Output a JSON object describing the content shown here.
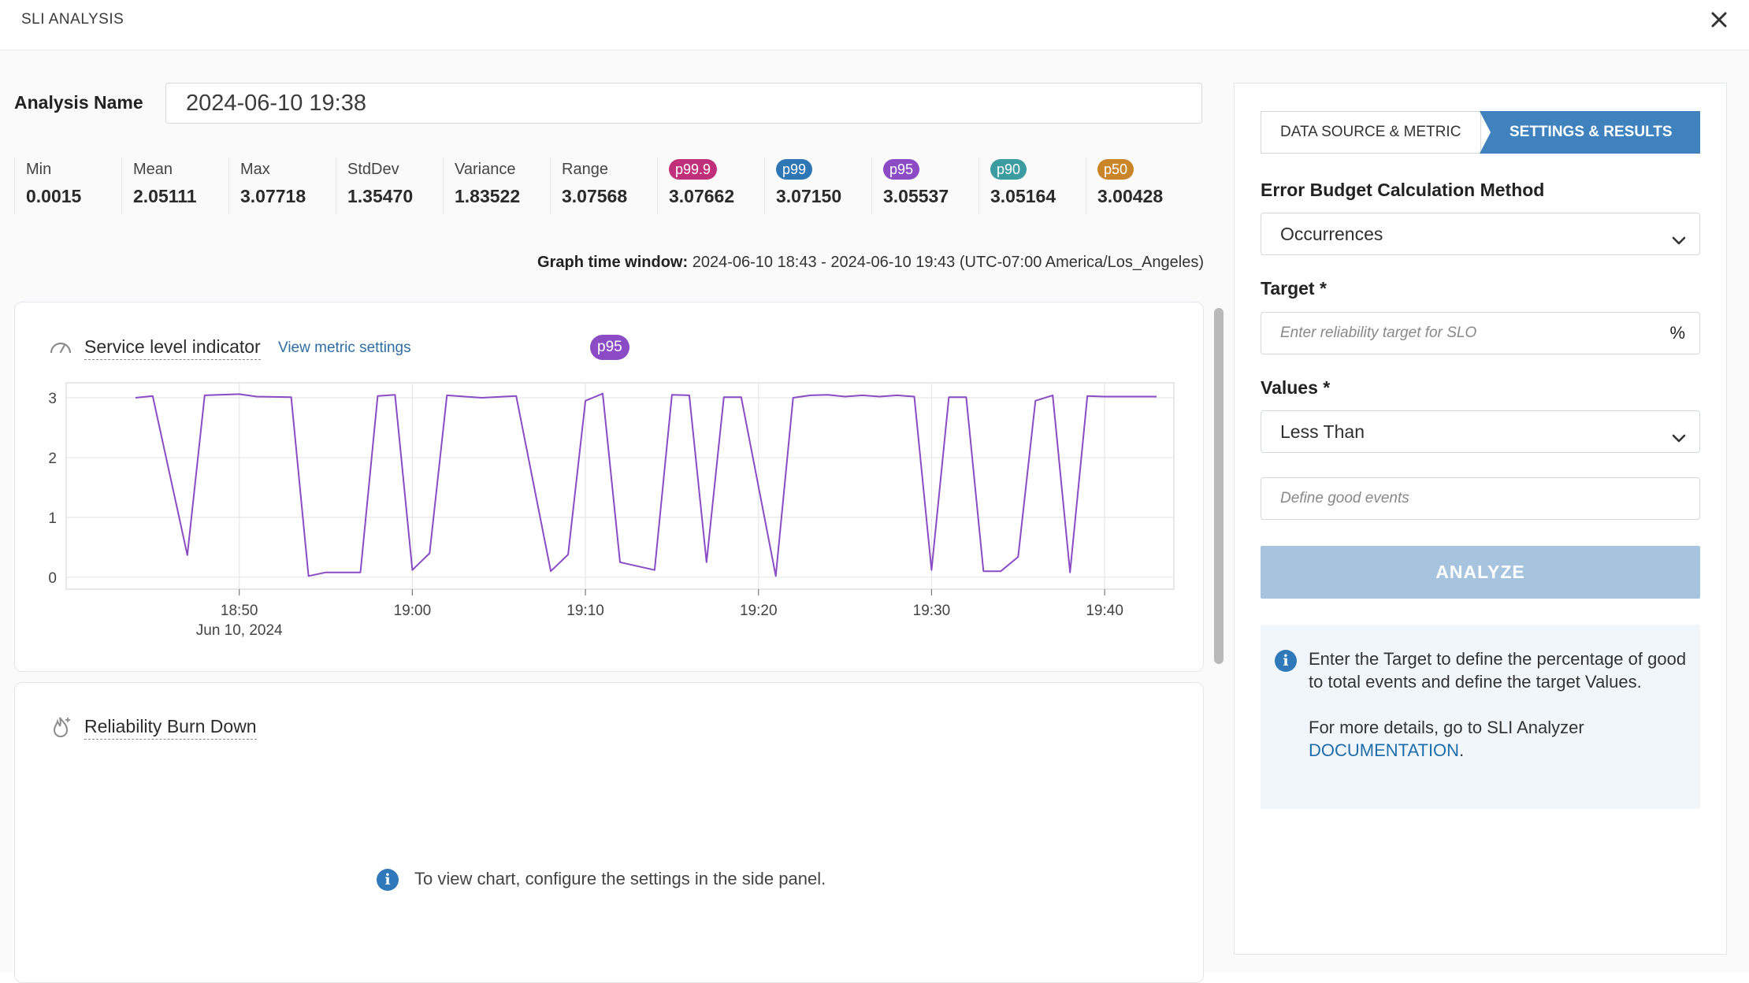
{
  "header": {
    "title": "SLI ANALYSIS",
    "close_icon": "close-icon"
  },
  "analysis": {
    "label": "Analysis Name",
    "value": "2024-06-10 19:38"
  },
  "stats": [
    {
      "label": "Min",
      "value": "0.0015",
      "badge": false
    },
    {
      "label": "Mean",
      "value": "2.05111",
      "badge": false
    },
    {
      "label": "Max",
      "value": "3.07718",
      "badge": false
    },
    {
      "label": "StdDev",
      "value": "1.35470",
      "badge": false
    },
    {
      "label": "Variance",
      "value": "1.83522",
      "badge": false
    },
    {
      "label": "Range",
      "value": "3.07568",
      "badge": false
    },
    {
      "label": "p99.9",
      "value": "3.07662",
      "badge": true,
      "color": "#c0307a"
    },
    {
      "label": "p99",
      "value": "3.07150",
      "badge": true,
      "color": "#2f76b5"
    },
    {
      "label": "p95",
      "value": "3.05537",
      "badge": true,
      "color": "#8a4bc4"
    },
    {
      "label": "p90",
      "value": "3.05164",
      "badge": true,
      "color": "#3d9c9f"
    },
    {
      "label": "p50",
      "value": "3.00428",
      "badge": true,
      "color": "#c98527"
    }
  ],
  "time_window": {
    "label": "Graph time window:",
    "value": "2024-06-10 18:43 - 2024-06-10 19:43 (UTC-07:00 America/Los_Angeles)"
  },
  "sli_card": {
    "title": "Service level indicator",
    "link": "View metric settings",
    "badge": "p95",
    "badge_color": "#8a4bc4",
    "icon": "gauge-icon"
  },
  "chart_data": {
    "type": "line",
    "series": [
      {
        "name": "p95",
        "color": "#8a4bc4",
        "x": [
          "18:44",
          "18:45",
          "18:47",
          "18:48",
          "18:50",
          "18:51",
          "18:53",
          "18:54",
          "18:55",
          "18:57",
          "18:58",
          "18:59",
          "19:00",
          "19:01",
          "19:02",
          "19:04",
          "19:06",
          "19:08",
          "19:09",
          "19:10",
          "19:11",
          "19:12",
          "19:14",
          "19:15",
          "19:16",
          "19:17",
          "19:18",
          "19:19",
          "19:21",
          "19:22",
          "19:23",
          "19:24",
          "19:25",
          "19:26",
          "19:27",
          "19:28",
          "19:29",
          "19:30",
          "19:31",
          "19:32",
          "19:33",
          "19:34",
          "19:35",
          "19:36",
          "19:37",
          "19:38",
          "19:39",
          "19:40",
          "19:41",
          "19:42",
          "19:43"
        ],
        "y": [
          3.0,
          3.03,
          0.37,
          3.04,
          3.06,
          3.02,
          3.01,
          0.02,
          0.08,
          0.08,
          3.03,
          3.05,
          0.12,
          0.4,
          3.04,
          3.0,
          3.03,
          0.1,
          0.38,
          2.95,
          3.07,
          0.25,
          0.12,
          3.05,
          3.04,
          0.25,
          3.01,
          3.01,
          0.02,
          3.0,
          3.04,
          3.05,
          3.02,
          3.04,
          3.02,
          3.04,
          3.02,
          0.12,
          3.01,
          3.01,
          0.1,
          0.1,
          0.34,
          2.95,
          3.04,
          0.08,
          3.03,
          3.02,
          3.02,
          3.02,
          3.02
        ]
      }
    ],
    "x_ticks": [
      "18:50",
      "19:00",
      "19:10",
      "19:20",
      "19:30",
      "19:40"
    ],
    "x_subtick": "Jun 10, 2024",
    "y_ticks": [
      0,
      1,
      2,
      3
    ],
    "ylim": [
      -0.2,
      3.25
    ],
    "grid": true
  },
  "burn_card": {
    "title": "Reliability Burn Down",
    "icon": "flame-icon",
    "empty_message": "To view chart, configure the settings in the side panel."
  },
  "panel": {
    "tabs": [
      "DATA SOURCE & METRIC",
      "SETTINGS & RESULTS"
    ],
    "ebcm_label": "Error Budget Calculation Method",
    "ebcm_value": "Occurrences",
    "target_label": "Target",
    "target_placeholder": "Enter reliability target for SLO",
    "target_unit": "%",
    "values_label": "Values",
    "values_value": "Less Than",
    "good_events_placeholder": "Define good events",
    "required_mark": "*",
    "analyze_label": "ANALYZE",
    "info_line1": "Enter the Target to define the percentage of good to total events and define the target Values.",
    "info_line2": "For more details, go to SLI Analyzer",
    "info_link": "DOCUMENTATION",
    "info_tail": "."
  },
  "colors": {
    "accent": "#3f82bd",
    "analyze_disabled": "#a7c4de",
    "series": "#8a4bc4"
  }
}
